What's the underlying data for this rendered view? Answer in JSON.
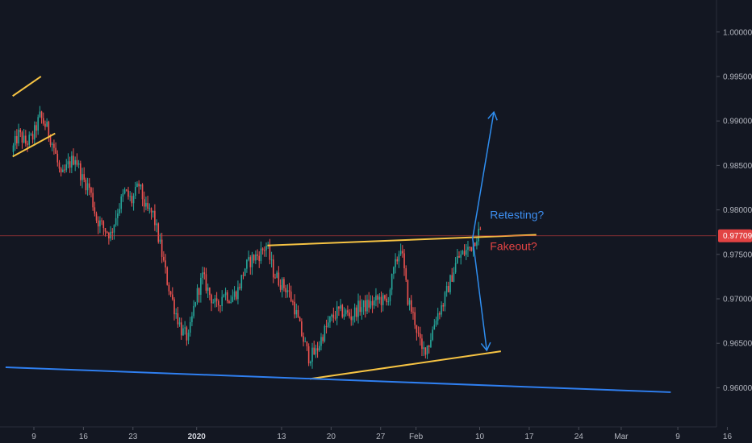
{
  "chart_data": {
    "type": "candlestick",
    "title": "",
    "ylim": [
      0.9556,
      1.0036
    ],
    "y_ticks": [
      {
        "value": 1.0,
        "label": "1.00000"
      },
      {
        "value": 0.995,
        "label": "0.99500"
      },
      {
        "value": 0.99,
        "label": "0.99000"
      },
      {
        "value": 0.985,
        "label": "0.98500"
      },
      {
        "value": 0.98,
        "label": "0.98000"
      },
      {
        "value": 0.975,
        "label": "0.97500"
      },
      {
        "value": 0.97,
        "label": "0.97000"
      },
      {
        "value": 0.965,
        "label": "0.96500"
      },
      {
        "value": 0.96,
        "label": "0.96000"
      }
    ],
    "x_range": [
      "2019-12-06",
      "2020-03-18"
    ],
    "x_ticks": [
      {
        "date": "2019-12-09",
        "label": "9",
        "bold": false
      },
      {
        "date": "2019-12-16",
        "label": "16",
        "bold": false
      },
      {
        "date": "2019-12-23",
        "label": "23",
        "bold": false
      },
      {
        "date": "2020-01-01",
        "label": "2020",
        "bold": true
      },
      {
        "date": "2020-01-13",
        "label": "13",
        "bold": false
      },
      {
        "date": "2020-01-20",
        "label": "20",
        "bold": false
      },
      {
        "date": "2020-01-27",
        "label": "27",
        "bold": false
      },
      {
        "date": "2020-02-01",
        "label": "Feb",
        "bold": false
      },
      {
        "date": "2020-02-10",
        "label": "10",
        "bold": false
      },
      {
        "date": "2020-02-17",
        "label": "17",
        "bold": false
      },
      {
        "date": "2020-02-24",
        "label": "24",
        "bold": false
      },
      {
        "date": "2020-03-01",
        "label": "Mar",
        "bold": false
      },
      {
        "date": "2020-03-09",
        "label": "9",
        "bold": false
      },
      {
        "date": "2020-03-16",
        "label": "16",
        "bold": false
      }
    ],
    "price_anchors": [
      [
        "2019-12-06",
        0.9865
      ],
      [
        "2019-12-07",
        0.9885
      ],
      [
        "2019-12-08",
        0.9875
      ],
      [
        "2019-12-09",
        0.9882
      ],
      [
        "2019-12-10",
        0.9905
      ],
      [
        "2019-12-11",
        0.9892
      ],
      [
        "2019-12-12",
        0.987
      ],
      [
        "2019-12-13",
        0.9835
      ],
      [
        "2019-12-14",
        0.985
      ],
      [
        "2019-12-15",
        0.986
      ],
      [
        "2019-12-16",
        0.9835
      ],
      [
        "2019-12-17",
        0.9825
      ],
      [
        "2019-12-18",
        0.979
      ],
      [
        "2019-12-19",
        0.978
      ],
      [
        "2019-12-20",
        0.9772
      ],
      [
        "2019-12-21",
        0.98
      ],
      [
        "2019-12-22",
        0.982
      ],
      [
        "2019-12-23",
        0.981
      ],
      [
        "2019-12-24",
        0.9828
      ],
      [
        "2019-12-25",
        0.98
      ],
      [
        "2019-12-26",
        0.9795
      ],
      [
        "2019-12-27",
        0.976
      ],
      [
        "2019-12-28",
        0.972
      ],
      [
        "2019-12-29",
        0.969
      ],
      [
        "2019-12-30",
        0.9665
      ],
      [
        "2019-12-31",
        0.9655
      ],
      [
        "2020-01-01",
        0.97
      ],
      [
        "2020-01-02",
        0.9725
      ],
      [
        "2020-01-03",
        0.9705
      ],
      [
        "2020-01-04",
        0.969
      ],
      [
        "2020-01-05",
        0.9708
      ],
      [
        "2020-01-06",
        0.97
      ],
      [
        "2020-01-07",
        0.971
      ],
      [
        "2020-01-08",
        0.9735
      ],
      [
        "2020-01-09",
        0.9745
      ],
      [
        "2020-01-10",
        0.975
      ],
      [
        "2020-01-11",
        0.976
      ],
      [
        "2020-01-12",
        0.973
      ],
      [
        "2020-01-13",
        0.9718
      ],
      [
        "2020-01-14",
        0.971
      ],
      [
        "2020-01-15",
        0.969
      ],
      [
        "2020-01-16",
        0.966
      ],
      [
        "2020-01-17",
        0.9635
      ],
      [
        "2020-01-18",
        0.964
      ],
      [
        "2020-01-19",
        0.966
      ],
      [
        "2020-01-20",
        0.9675
      ],
      [
        "2020-01-21",
        0.9685
      ],
      [
        "2020-01-22",
        0.9685
      ],
      [
        "2020-01-23",
        0.968
      ],
      [
        "2020-01-24",
        0.969
      ],
      [
        "2020-01-25",
        0.9692
      ],
      [
        "2020-01-26",
        0.9695
      ],
      [
        "2020-01-27",
        0.97
      ],
      [
        "2020-01-28",
        0.9695
      ],
      [
        "2020-01-29",
        0.973
      ],
      [
        "2020-01-30",
        0.976
      ],
      [
        "2020-01-31",
        0.97
      ],
      [
        "2020-02-01",
        0.9675
      ],
      [
        "2020-02-02",
        0.964
      ],
      [
        "2020-02-03",
        0.965
      ],
      [
        "2020-02-04",
        0.968
      ],
      [
        "2020-02-05",
        0.9695
      ],
      [
        "2020-02-06",
        0.972
      ],
      [
        "2020-02-07",
        0.9745
      ],
      [
        "2020-02-08",
        0.9752
      ],
      [
        "2020-02-09",
        0.976
      ],
      [
        "2020-02-10",
        0.9775
      ]
    ],
    "overlays": [
      {
        "name": "upper-channel-line",
        "type": "trendline",
        "color": "#f6c343",
        "points": [
          [
            "2019-12-06",
            0.9928
          ],
          [
            "2019-12-10",
            0.995
          ]
        ]
      },
      {
        "name": "lower-channel-line",
        "type": "trendline",
        "color": "#f6c343",
        "points": [
          [
            "2019-12-06",
            0.986
          ],
          [
            "2019-12-12",
            0.9886
          ]
        ]
      },
      {
        "name": "triangle-resistance-line",
        "type": "trendline",
        "color": "#f6c343",
        "points": [
          [
            "2020-01-11",
            0.976
          ],
          [
            "2020-02-18",
            0.9772
          ]
        ]
      },
      {
        "name": "triangle-support-line",
        "type": "trendline",
        "color": "#f6c343",
        "points": [
          [
            "2020-01-17",
            0.961
          ],
          [
            "2020-02-13",
            0.9641
          ]
        ]
      },
      {
        "name": "long-term-support-line",
        "type": "trendline",
        "color": "#2f7ff0",
        "points": [
          [
            "2019-12-05",
            0.9623
          ],
          [
            "2020-03-08",
            0.9595
          ]
        ]
      },
      {
        "name": "current-price-line",
        "type": "horizontal",
        "color": "#d04040",
        "value": 0.97709
      }
    ],
    "arrows": [
      {
        "name": "bullish-scenario-arrow",
        "color": "#2f8ef0",
        "from": [
          "2020-02-09",
          0.9768
        ],
        "to": [
          "2020-02-12",
          0.991
        ]
      },
      {
        "name": "bearish-scenario-arrow",
        "color": "#2f8ef0",
        "from": [
          "2020-02-09",
          0.9768
        ],
        "to": [
          "2020-02-11",
          0.9642
        ]
      }
    ],
    "last_price": {
      "value": 0.97709,
      "label": "0.97709",
      "color": "#e24343"
    },
    "annotations": [
      {
        "name": "retesting-label",
        "text": "Retesting?",
        "color": "#3d8ff2",
        "at": [
          "2020-02-11",
          0.979
        ]
      },
      {
        "name": "fakeout-label",
        "text": "Fakeout?",
        "color": "#e24343",
        "at": [
          "2020-02-11",
          0.9755
        ]
      }
    ],
    "colors": {
      "up": "#26a69a",
      "down": "#ef5350",
      "background": "#131722",
      "axis_text": "#b2b5be",
      "axis_line": "#2a2e39"
    }
  }
}
